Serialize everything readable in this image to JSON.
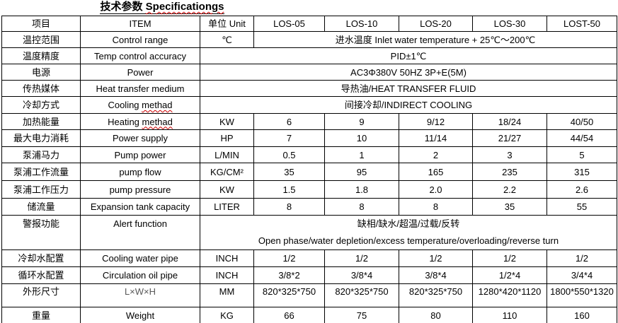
{
  "ui": {
    "misspelled_words": [
      "Specificationgs",
      "methad"
    ],
    "colors": {
      "border": "#000000",
      "text": "#000000",
      "dim_label_text": "#595959",
      "spellcheck_squiggle": "#cc0000",
      "background": "#ffffff"
    }
  },
  "title": {
    "cn": "技术参数",
    "en": "Specificationgs"
  },
  "table": {
    "headers": [
      "项目",
      "ITEM",
      "单位 Unit",
      "LOS-05",
      "LOS-10",
      "LOS-20",
      "LOS-30",
      "LOST-50"
    ],
    "rows": [
      {
        "label_cn": "温控范围",
        "label_en": "Control range",
        "unit": "℃",
        "merged": "进水温度 Inlet water temperature + 25℃～200℃"
      },
      {
        "label_cn": "温度精度",
        "label_en": "Temp control accuracy",
        "merged": "PID±1℃"
      },
      {
        "label_cn": "电源",
        "label_en": "Power",
        "merged": "AC3Φ380V 50HZ 3P+E(5M)"
      },
      {
        "label_cn": "传热媒体",
        "label_en": "Heat transfer medium",
        "merged": "导热油/HEAT TRANSFER FLUID"
      },
      {
        "label_cn": "冷却方式",
        "label_en": "Cooling methad",
        "merged": "间接冷却/INDIRECT COOLING"
      },
      {
        "label_cn": "加热能量",
        "label_en": "Heating methad",
        "unit": "KW",
        "values": [
          "6",
          "9",
          "9/12",
          "18/24",
          "40/50"
        ]
      },
      {
        "label_cn": "最大电力消耗",
        "label_en": "Power supply",
        "unit": "HP",
        "values": [
          "7",
          "10",
          "11/14",
          "21/27",
          "44/54"
        ]
      },
      {
        "label_cn": "泵浦马力",
        "label_en": "Pump power",
        "unit": "L/MIN",
        "values": [
          "0.5",
          "1",
          "2",
          "3",
          "5"
        ]
      },
      {
        "label_cn": "泵浦工作流量",
        "label_en": "pump flow",
        "unit": "KG/CM²",
        "values": [
          "35",
          "95",
          "165",
          "235",
          "315"
        ]
      },
      {
        "label_cn": "泵浦工作压力",
        "label_en": "pump pressure",
        "unit": "KW",
        "values": [
          "1.5",
          "1.8",
          "2.0",
          "2.2",
          "2.6"
        ]
      },
      {
        "label_cn": "储流量",
        "label_en": "Expansion tank capacity",
        "unit": "LITER",
        "values": [
          "8",
          "8",
          "8",
          "35",
          "55"
        ]
      },
      {
        "label_cn": "警报功能",
        "label_en": "Alert function",
        "merged_line1": "缺相/缺水/超温/过载/反转",
        "merged_line2": "Open phase/water depletion/excess temperature/overloading/reverse turn"
      },
      {
        "label_cn": "冷却水配置",
        "label_en": "Cooling water pipe",
        "unit": "INCH",
        "values": [
          "1/2",
          "1/2",
          "1/2",
          "1/2",
          "1/2"
        ]
      },
      {
        "label_cn": "循环水配置",
        "label_en": "Circulation oil pipe",
        "unit": "INCH",
        "values": [
          "3/8*2",
          "3/8*4",
          "3/8*4",
          "1/2*4",
          "3/4*4"
        ]
      },
      {
        "label_cn": "外形尺寸",
        "label_en": "L×W×H",
        "unit": "MM",
        "values": [
          "820*325*750",
          "820*325*750",
          "820*325*750",
          "1280*420*1120",
          "1800*550*1320"
        ]
      },
      {
        "label_cn": "重量",
        "label_en": "Weight",
        "unit": "KG",
        "values": [
          "66",
          "75",
          "80",
          "110",
          "160"
        ]
      }
    ]
  }
}
